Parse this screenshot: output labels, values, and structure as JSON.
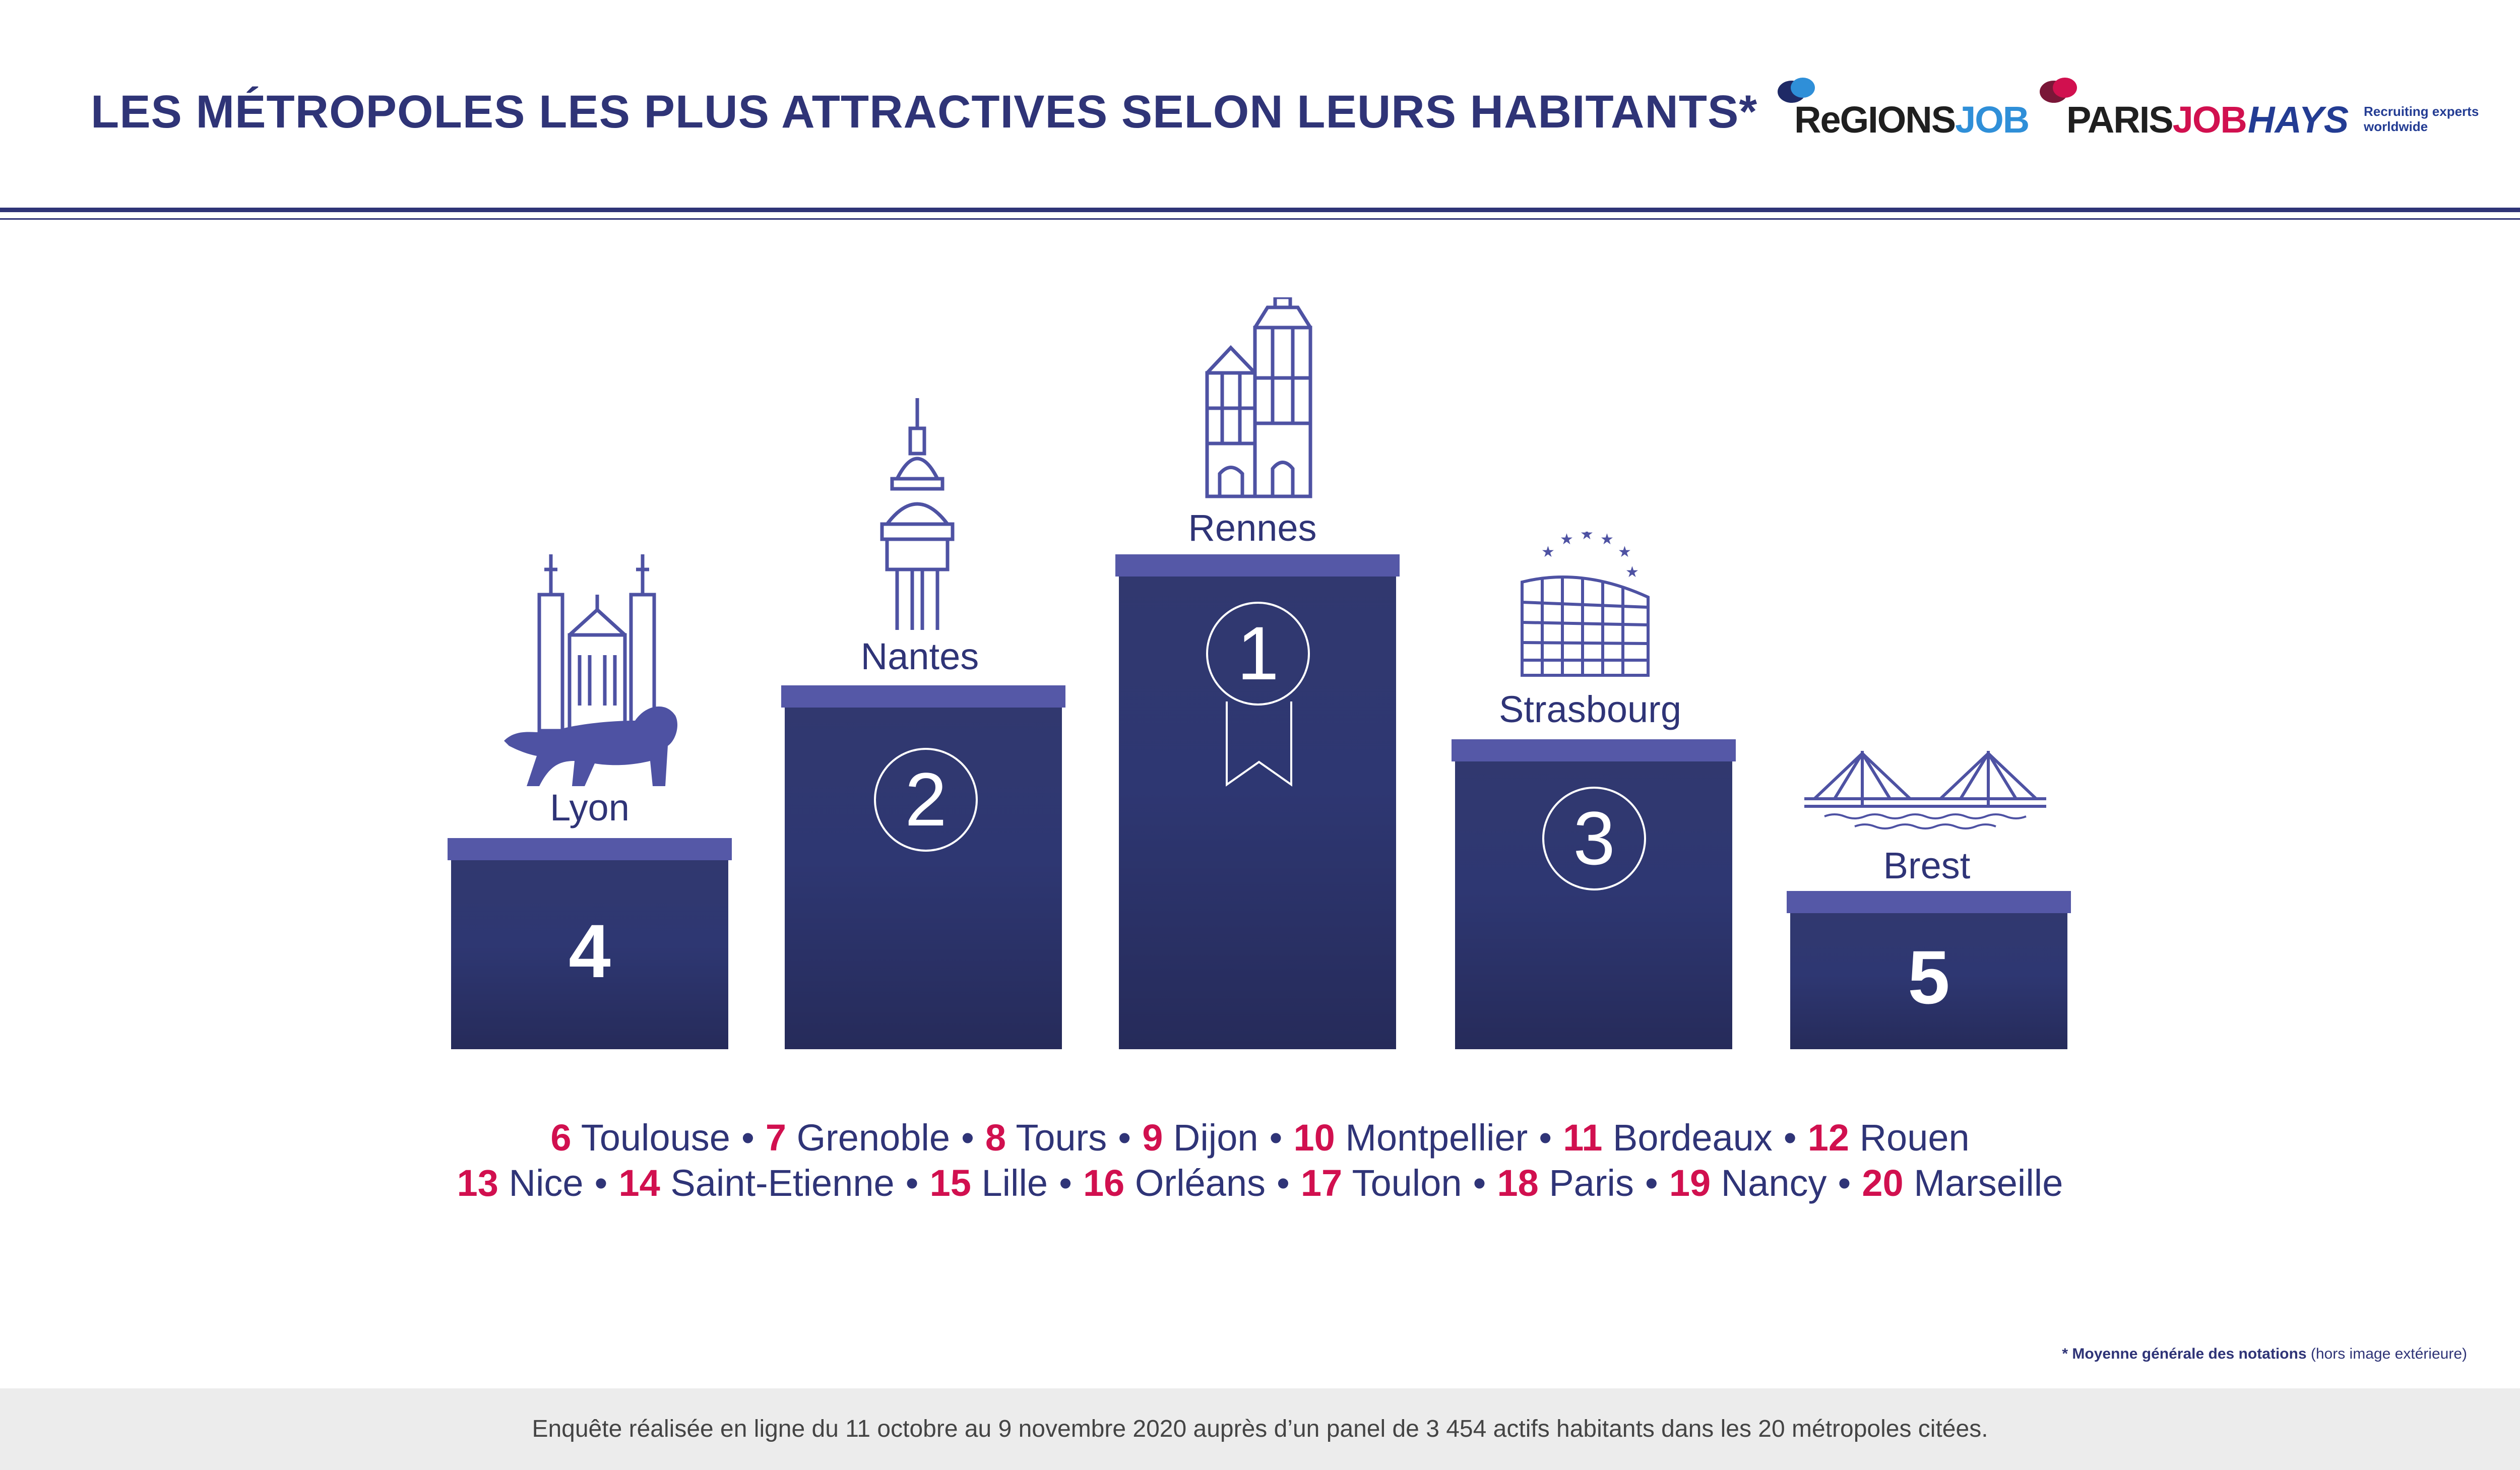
{
  "title": "LES MÉTROPOLES LES PLUS ATTRACTIVES SELON LEURS HABITANTS*",
  "logos": {
    "regions": {
      "main": "ReGIONS",
      "accent": "JOB"
    },
    "paris": {
      "main": "PARIS",
      "accent": "JOB"
    },
    "hays": {
      "name": "HAYS",
      "tagline": "Recruiting experts",
      "tagline2": "worldwide"
    }
  },
  "podium": [
    {
      "rank": "4",
      "city": "Lyon",
      "icon": "lyon-basilica-lion-icon"
    },
    {
      "rank": "2",
      "city": "Nantes",
      "icon": "nantes-dome-icon"
    },
    {
      "rank": "1",
      "city": "Rennes",
      "icon": "rennes-timber-houses-icon"
    },
    {
      "rank": "3",
      "city": "Strasbourg",
      "icon": "strasbourg-parliament-icon"
    },
    {
      "rank": "5",
      "city": "Brest",
      "icon": "brest-bridge-icon"
    }
  ],
  "ranking_line1": [
    {
      "n": "6",
      "city": "Toulouse"
    },
    {
      "n": "7",
      "city": "Grenoble"
    },
    {
      "n": "8",
      "city": "Tours"
    },
    {
      "n": "9",
      "city": "Dijon"
    },
    {
      "n": "10",
      "city": "Montpellier"
    },
    {
      "n": "11",
      "city": "Bordeaux"
    },
    {
      "n": "12",
      "city": "Rouen"
    }
  ],
  "ranking_line2": [
    {
      "n": "13",
      "city": "Nice"
    },
    {
      "n": "14",
      "city": "Saint-Etienne"
    },
    {
      "n": "15",
      "city": "Lille"
    },
    {
      "n": "16",
      "city": "Orléans"
    },
    {
      "n": "17",
      "city": "Toulon"
    },
    {
      "n": "18",
      "city": "Paris"
    },
    {
      "n": "19",
      "city": "Nancy"
    },
    {
      "n": "20",
      "city": "Marseille"
    }
  ],
  "separator": "•",
  "note": {
    "bold": "* Moyenne générale des notations",
    "rest": " (hors image extérieure)"
  },
  "footer": "Enquête réalisée en ligne du 11 octobre au 9 novembre 2020 auprès d’un panel de 3 454 actifs habitants dans les 20 métropoles citées.",
  "colors": {
    "navy": "#2f3477",
    "accent": "#d1104f",
    "cap": "#5558a7",
    "icon": "#4e52a3"
  }
}
